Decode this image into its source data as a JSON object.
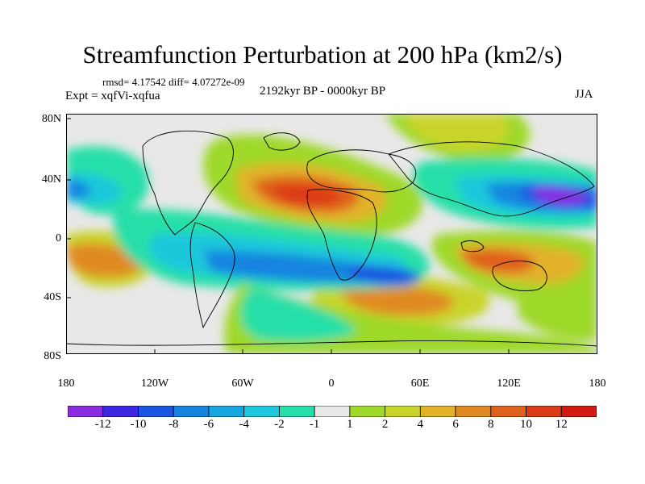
{
  "title": "Streamfunction Perturbation at 200 hPa (km2/s)",
  "stats": "rmsd= 4.17542 diff= 4.07272e-09",
  "expt": "Expt = xqfVi-xqfua",
  "period": "2192kyr BP - 0000kyr BP",
  "season": "JJA",
  "lat_labels": [
    "80N",
    "40N",
    "0",
    "40S",
    "80S"
  ],
  "lon_labels": [
    "180",
    "120W",
    "60W",
    "0",
    "60E",
    "120E",
    "180"
  ],
  "colorbar": {
    "labels": [
      "-12",
      "-10",
      "-8",
      "-6",
      "-4",
      "-2",
      "-1",
      "1",
      "2",
      "4",
      "6",
      "8",
      "10",
      "12"
    ],
    "colors": [
      "#8a2be2",
      "#3e27e0",
      "#1b55e3",
      "#1584e0",
      "#17a7e0",
      "#1fc7dc",
      "#26dfa8",
      "#e8e8e8",
      "#9fd92b",
      "#c9d42a",
      "#e1b22a",
      "#e08a23",
      "#e0611d",
      "#dd3a17",
      "#d11a12"
    ]
  },
  "colors": {
    "land_outline": "#000000",
    "neutral": "#e8e8e8"
  }
}
